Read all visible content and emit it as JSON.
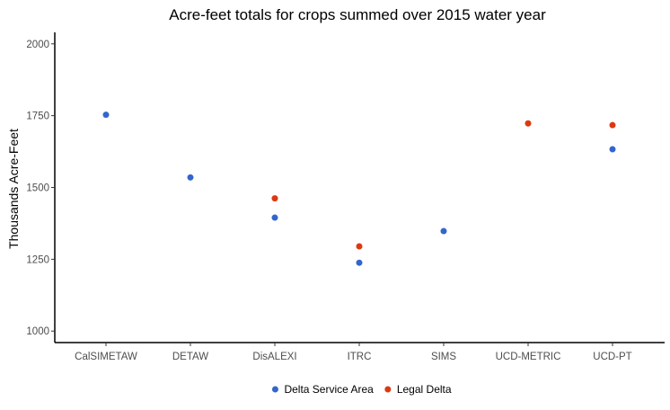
{
  "chart_data": {
    "type": "scatter",
    "title": "Acre-feet totals for crops summed over 2015 water year",
    "xlabel": "",
    "ylabel": "Thousands Acre-Feet",
    "categories": [
      "CalSIMETAW",
      "DETAW",
      "DisALEXI",
      "ITRC",
      "SIMS",
      "UCD-METRIC",
      "UCD-PT"
    ],
    "ylim": [
      960,
      2040
    ],
    "yticks": [
      1000,
      1250,
      1500,
      1750,
      2000
    ],
    "grid": false,
    "legend_position": "bottom",
    "series": [
      {
        "name": "Delta Service Area",
        "color": "#3366CC",
        "values": [
          1753,
          1535,
          1395,
          1238,
          1348,
          null,
          1633
        ]
      },
      {
        "name": "Legal Delta",
        "color": "#DC3912",
        "values": [
          null,
          null,
          1462,
          1295,
          null,
          1723,
          1717
        ]
      }
    ]
  }
}
